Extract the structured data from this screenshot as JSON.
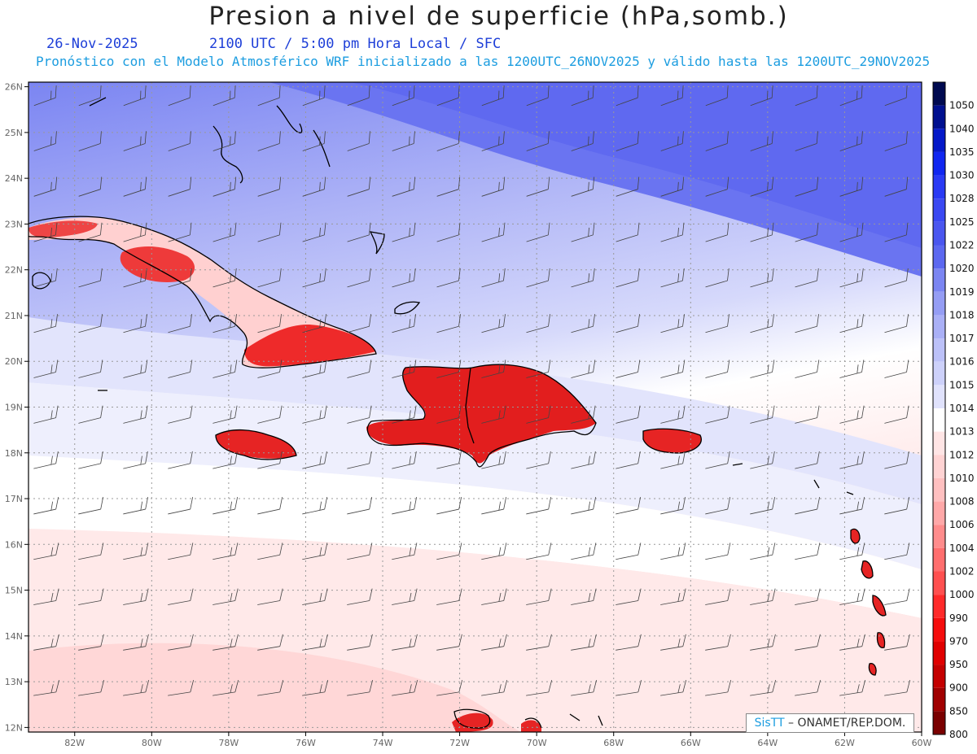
{
  "header": {
    "title": "Presion a nivel de superficie (hPa,somb.)",
    "date": "26-Nov-2025",
    "time": "2100 UTC / 5:00 pm Hora Local / SFC",
    "subtitle": "Pronóstico con el Modelo Atmosférico WRF inicializado a las 1200UTC_26NOV2025 y válido hasta las  1200UTC_29NOV2025"
  },
  "map": {
    "lon_range": [
      -83.2,
      -60
    ],
    "lat_range": [
      11.9,
      26.1
    ],
    "lon_ticks": [
      "82W",
      "80W",
      "78W",
      "76W",
      "74W",
      "72W",
      "70W",
      "68W",
      "66W",
      "64W",
      "62W",
      "60W"
    ],
    "lat_ticks": [
      "26N",
      "25N",
      "24N",
      "23N",
      "22N",
      "21N",
      "20N",
      "19N",
      "18N",
      "17N",
      "16N",
      "15N",
      "14N",
      "13N",
      "12N"
    ],
    "gridlines": true,
    "field": "surface pressure shaded",
    "wind_barbs": true
  },
  "legend": {
    "levels": [
      "1050",
      "1040",
      "1035",
      "1030",
      "1028",
      "1025",
      "1022",
      "1020",
      "1019",
      "1018",
      "1017",
      "1016",
      "1015",
      "1014",
      "1013",
      "1012",
      "1010",
      "1008",
      "1006",
      "1004",
      "1002",
      "1000",
      "990",
      "970",
      "950",
      "900",
      "850",
      "800"
    ],
    "colors": [
      "#000a50",
      "#00108f",
      "#0418c8",
      "#1026f0",
      "#2a3af4",
      "#3a48f2",
      "#4a56ef",
      "#5c68f0",
      "#7b85f2",
      "#959df4",
      "#aab0f6",
      "#bcc1f8",
      "#cdd1fa",
      "#e0e2fc",
      "#ffffff",
      "#ffe5e5",
      "#ffd3d3",
      "#ffc0c0",
      "#ffa8a8",
      "#ff8c8c",
      "#ff6e6e",
      "#ff5050",
      "#ff2a2a",
      "#f50d0d",
      "#e00000",
      "#c40000",
      "#a00000",
      "#7a0000"
    ]
  },
  "credit": {
    "logo": "SisTT",
    "text": "– ONAMET/REP.DOM."
  }
}
